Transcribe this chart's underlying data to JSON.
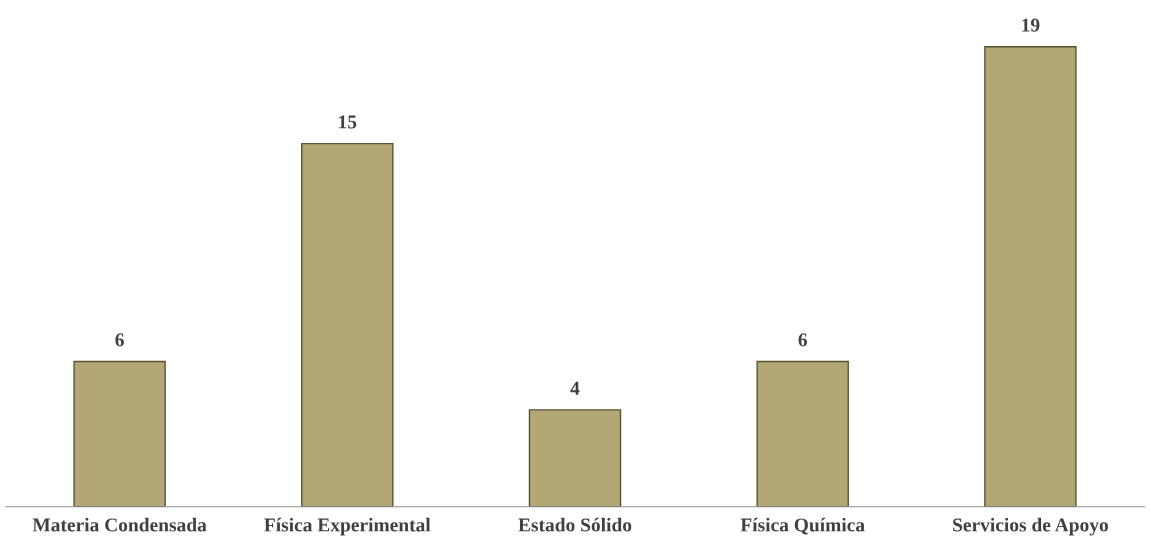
{
  "chart_data": {
    "type": "bar",
    "categories": [
      "Materia Condensada",
      "Física Experimental",
      "Estado Sólido",
      "Física Química",
      "Servicios de Apoyo"
    ],
    "values": [
      6,
      15,
      4,
      6,
      19
    ],
    "color": "#b3a775",
    "data_labels": true,
    "grid": false,
    "legend": false
  }
}
